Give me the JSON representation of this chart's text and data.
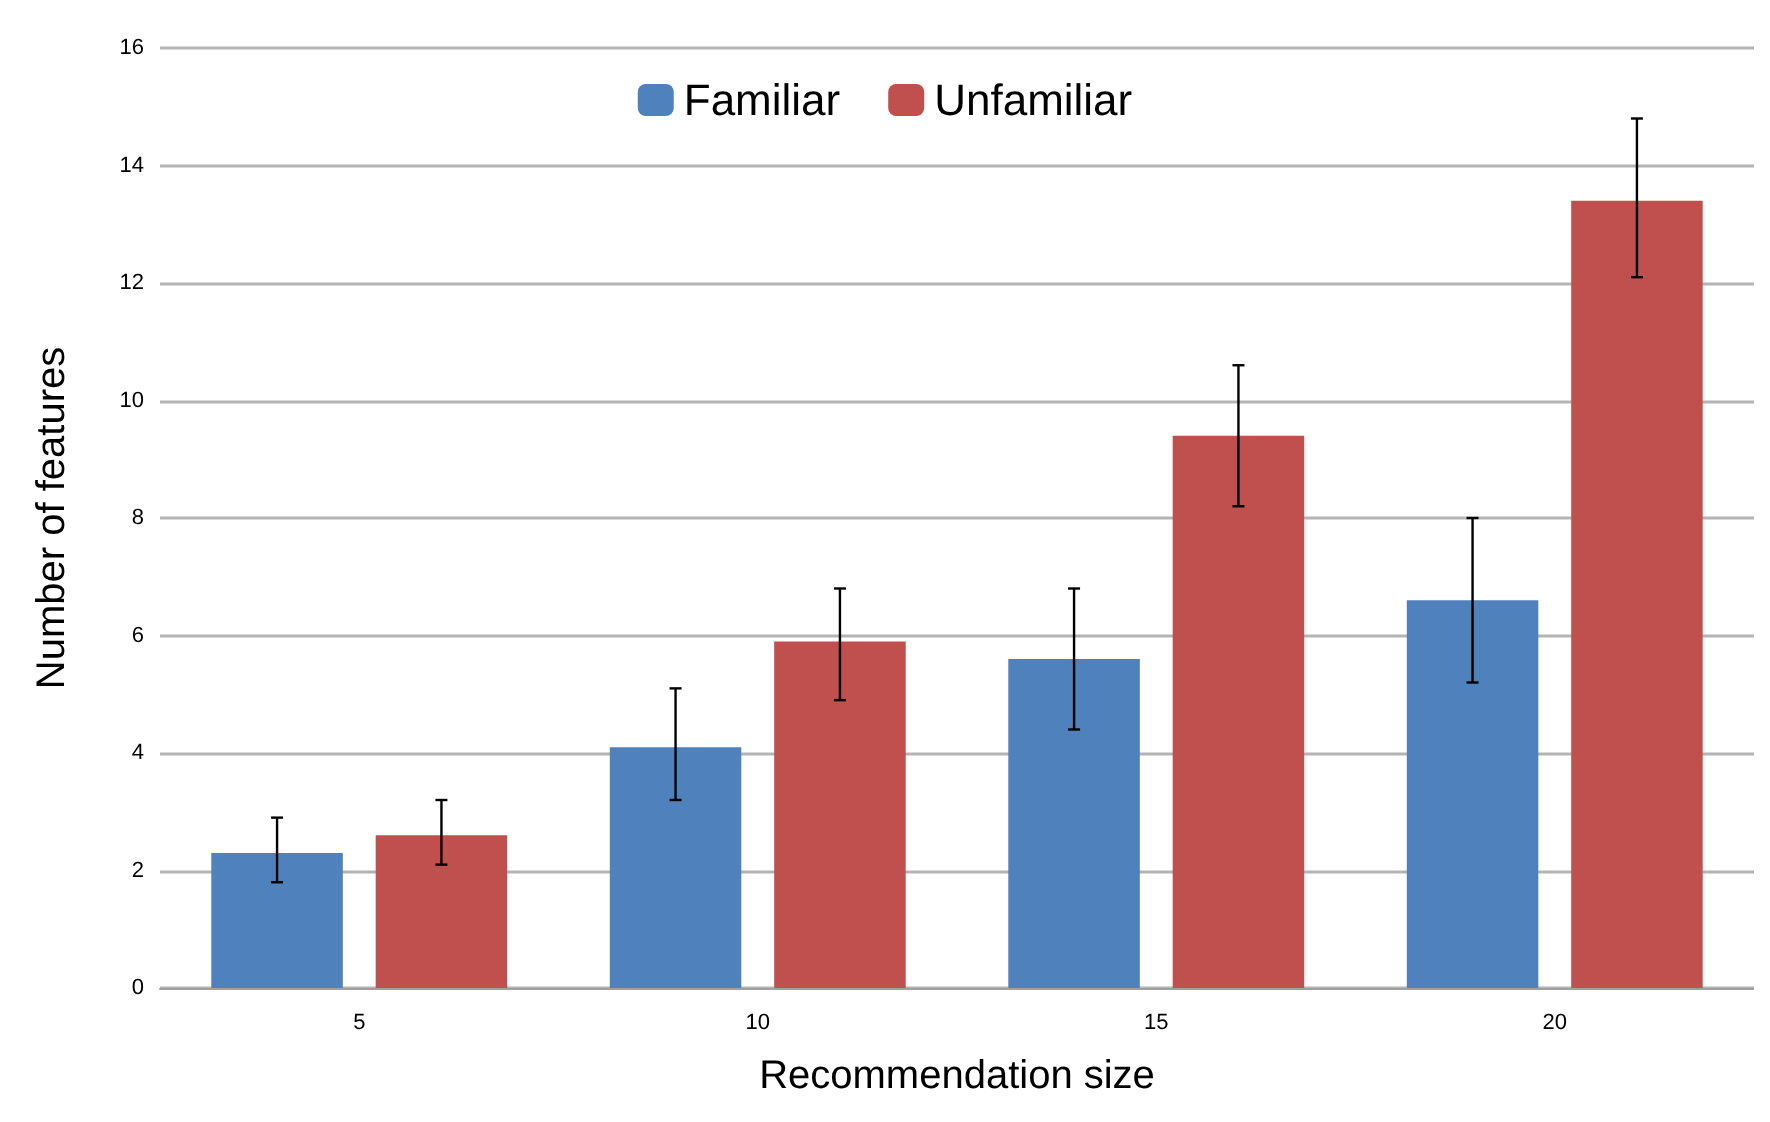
{
  "chart_data": {
    "type": "bar",
    "xlabel": "Recommendation size",
    "ylabel": "Number of features",
    "categories": [
      "5",
      "10",
      "15",
      "20"
    ],
    "series": [
      {
        "name": "Familiar",
        "color": "#4f81bd",
        "values": [
          2.3,
          4.1,
          5.6,
          6.6
        ],
        "errors": [
          [
            1.8,
            2.9
          ],
          [
            3.2,
            5.1
          ],
          [
            4.4,
            6.8
          ],
          [
            5.2,
            8.0
          ]
        ]
      },
      {
        "name": "Unfamiliar",
        "color": "#c0504d",
        "values": [
          2.6,
          5.9,
          9.4,
          13.4
        ],
        "errors": [
          [
            2.1,
            3.2
          ],
          [
            4.9,
            6.8
          ],
          [
            8.2,
            10.6
          ],
          [
            12.1,
            14.8
          ]
        ]
      }
    ],
    "ylim": [
      0,
      16
    ],
    "yticks": [
      0,
      2,
      4,
      6,
      8,
      10,
      12,
      14,
      16
    ],
    "grid": "y",
    "legend": "top"
  }
}
